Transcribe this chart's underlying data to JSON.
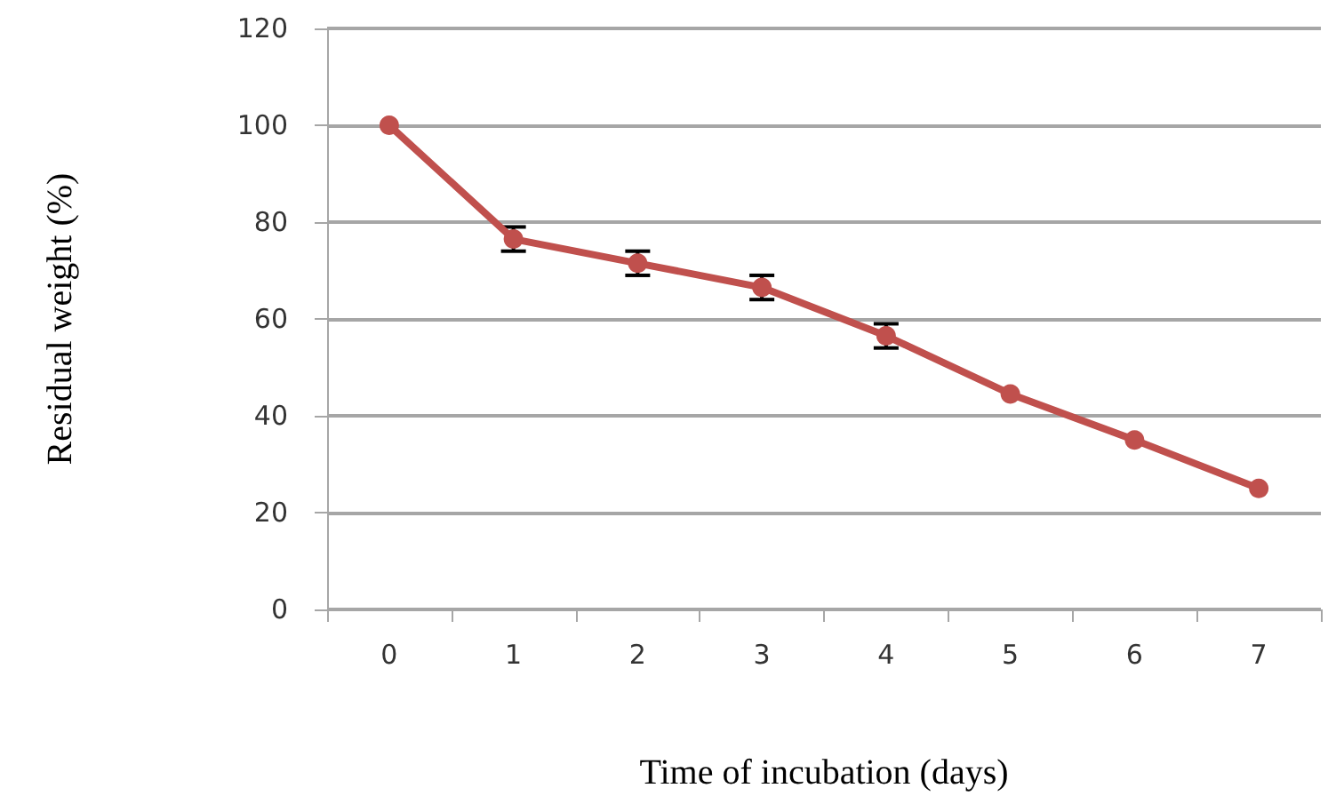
{
  "chart_data": {
    "type": "line",
    "xlabel": "Time of incubation (days)",
    "ylabel": "Residual weight (%)",
    "categories": [
      "0",
      "1",
      "2",
      "3",
      "4",
      "5",
      "6",
      "7"
    ],
    "series": [
      {
        "color": "#c0504d",
        "values": [
          100,
          76.5,
          71.5,
          66.5,
          56.5,
          44.5,
          35,
          25
        ],
        "errors": [
          null,
          2.5,
          2.5,
          2.5,
          2.5,
          null,
          null,
          null
        ]
      }
    ],
    "ylim": [
      0,
      120
    ],
    "yticks": [
      0,
      20,
      40,
      60,
      80,
      100,
      120
    ],
    "grid": "y",
    "marker": "circle",
    "line_style": "solid"
  }
}
